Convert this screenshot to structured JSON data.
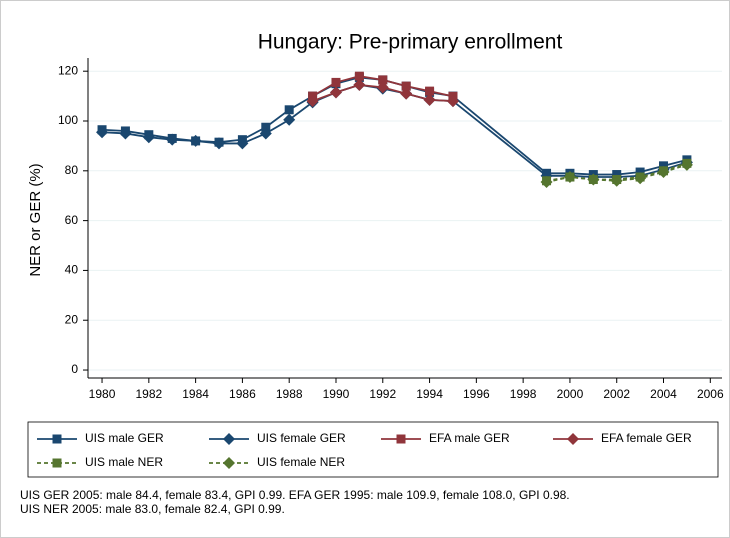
{
  "chart_data": {
    "type": "line",
    "title": "Hungary: Pre-primary enrollment",
    "y_label": "NER or GER (%)",
    "xlim": [
      1979.4,
      2006.5
    ],
    "xticks": [
      1980,
      1982,
      1984,
      1986,
      1988,
      1990,
      1992,
      1994,
      1996,
      1998,
      2000,
      2002,
      2004,
      2006
    ],
    "ylim": [
      -3.2,
      125.3
    ],
    "yticks": [
      0,
      20,
      40,
      60,
      80,
      100,
      120
    ],
    "grid": true,
    "series": [
      {
        "name": "UIS male GER",
        "color": "#1a476f",
        "marker": "square",
        "dash": false,
        "x": [
          1980,
          1981,
          1982,
          1983,
          1984,
          1985,
          1986,
          1987,
          1988,
          1989,
          1990,
          1991,
          1992,
          1993,
          1994,
          1995,
          1999,
          2000,
          2001,
          2002,
          2003,
          2004,
          2005
        ],
        "values": [
          96.5,
          96,
          94.5,
          93,
          92,
          91.5,
          92.5,
          97.5,
          104.5,
          110,
          115,
          117.5,
          116.5,
          114,
          111.5,
          110,
          79,
          79,
          78.5,
          78.5,
          79.5,
          82,
          84.4
        ]
      },
      {
        "name": "UIS female GER",
        "color": "#1a476f",
        "marker": "diamond",
        "dash": false,
        "x": [
          1980,
          1981,
          1982,
          1983,
          1984,
          1985,
          1986,
          1987,
          1988,
          1989,
          1990,
          1991,
          1992,
          1993,
          1994,
          1995,
          1999,
          2000,
          2001,
          2002,
          2003,
          2004,
          2005
        ],
        "values": [
          95.5,
          95,
          93.5,
          92.5,
          92,
          91,
          91,
          95,
          100.5,
          107.5,
          111.5,
          114.5,
          113,
          111,
          108.5,
          108,
          78,
          78,
          77.5,
          77.5,
          78,
          80.5,
          83.4
        ]
      },
      {
        "name": "EFA male GER",
        "color": "#90353b",
        "marker": "square",
        "dash": false,
        "x": [
          1989,
          1990,
          1991,
          1992,
          1993,
          1994,
          1995
        ],
        "values": [
          110,
          115.5,
          118,
          116.5,
          114,
          112,
          109.9
        ]
      },
      {
        "name": "EFA female GER",
        "color": "#90353b",
        "marker": "diamond",
        "dash": false,
        "x": [
          1989,
          1990,
          1991,
          1992,
          1993,
          1994,
          1995
        ],
        "values": [
          108,
          111.5,
          114.5,
          113.5,
          111,
          108.5,
          108
        ]
      },
      {
        "name": "UIS male NER",
        "color": "#55752f",
        "marker": "square",
        "dash": true,
        "x": [
          1999,
          2000,
          2001,
          2002,
          2003,
          2004,
          2005
        ],
        "values": [
          76,
          77.5,
          76.5,
          76.5,
          77.5,
          80,
          83
        ]
      },
      {
        "name": "UIS female NER",
        "color": "#55752f",
        "marker": "diamond",
        "dash": true,
        "x": [
          1999,
          2000,
          2001,
          2002,
          2003,
          2004,
          2005
        ],
        "values": [
          75.5,
          77.5,
          76.5,
          76,
          77,
          79.5,
          82.4
        ]
      }
    ],
    "notes": [
      "UIS GER 2005: male 84.4, female 83.4, GPI 0.99. EFA GER 1995: male 109.9, female 108.0, GPI 0.98.",
      "UIS NER 2005: male 83.0, female 82.4, GPI 0.99."
    ]
  }
}
